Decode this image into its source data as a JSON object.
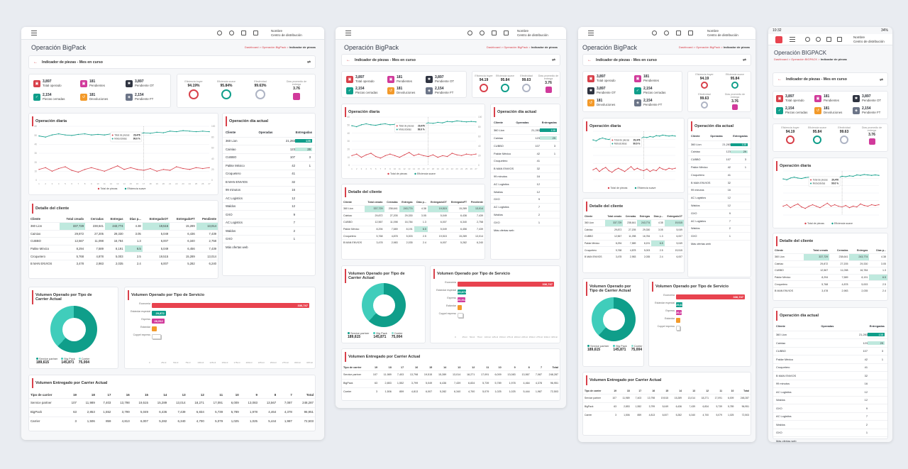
{
  "app": {
    "user_name": "Nombre",
    "user_sub": "Centro de distribución",
    "title": "Operación BigPack",
    "title_mobile": "Operación BIGPACK",
    "crumb_dashboard": "Dashboard",
    "crumb_mid": "Operación BigPack",
    "crumb_mid_mobile": "Operación BIGPACK",
    "crumb_current": "Indicador de piezas",
    "crumb_sep": " > ",
    "status_time": "10:32",
    "status_battery": "34%"
  },
  "subheader": {
    "label": "Indicador de piezas - Mes en curso"
  },
  "kpis": [
    {
      "value": "3,897",
      "label": "Total operado",
      "color": "#d8404a"
    },
    {
      "value": "181",
      "label": "Pendientes",
      "color": "#d13a9b"
    },
    {
      "value": "3,897",
      "label": "Pendiente OT",
      "color": "#2f3441"
    },
    {
      "value": "2,154",
      "label": "Piezas cerradas",
      "color": "#0f9e8a"
    },
    {
      "value": "181",
      "label": "Devoluciones",
      "color": "#f39a2a"
    },
    {
      "value": "2,154",
      "label": "Pendiente FT",
      "color": "#6c7588"
    }
  ],
  "gauges": [
    {
      "label": "Eficiencia buyer",
      "value": "94.19%",
      "value_short": "94.19",
      "color": "#d8404a"
    },
    {
      "label": "Eficiencia suave",
      "value": "95.84%",
      "value_short": "95.84",
      "color": "#0f9e8a"
    },
    {
      "label": "Efectividad",
      "value": "99.63%",
      "value_short": "99.63",
      "color": "#aeb4c4"
    },
    {
      "label": "Días promedio de entrega",
      "value": "3.76",
      "value_short": "3.76",
      "color": "#d13a9b"
    }
  ],
  "operacion_diaria": {
    "title": "Operación diaria",
    "tooltip": [
      {
        "label": "Total de piezas",
        "value": "29,476",
        "color": "#d8404a"
      },
      {
        "label": "Motocicletas",
        "value": "99.6 %",
        "color": "#0f9e8a"
      }
    ],
    "legend": [
      {
        "label": "Total de piezas",
        "color": "#d8404a"
      },
      {
        "label": "Eficiencia suave",
        "color": "#0f9e8a"
      }
    ],
    "y_ticks": [
      "60",
      "50",
      "40",
      "30",
      "20",
      "10",
      "0"
    ],
    "y2_ticks": [
      "100",
      "80",
      "60",
      "40",
      "20",
      "0"
    ],
    "x_ticks": [
      "1",
      "2",
      "3",
      "4",
      "5",
      "6",
      "7",
      "8",
      "9",
      "10",
      "11",
      "12",
      "13",
      "14",
      "15",
      "16",
      "17",
      "18",
      "19",
      "20",
      "21",
      "22",
      "23",
      "24",
      "25",
      "26",
      "27"
    ]
  },
  "chart_data": {
    "type": "line",
    "title": "Operación diaria",
    "x": [
      1,
      2,
      3,
      4,
      5,
      6,
      7,
      8,
      9,
      10,
      11,
      12,
      13,
      14,
      15,
      16,
      17,
      18,
      19,
      20,
      21,
      22,
      23,
      24,
      25,
      26,
      27
    ],
    "series": [
      {
        "name": "Total de piezas",
        "axis": "left",
        "color": "#d8404a",
        "values": [
          12,
          14,
          10,
          13,
          15,
          11,
          9,
          12,
          14,
          12,
          10,
          13,
          16,
          12,
          14,
          12,
          11,
          13,
          10,
          12,
          11,
          15,
          13,
          12,
          14,
          13,
          14
        ]
      },
      {
        "name": "Eficiencia suave",
        "axis": "right",
        "color": "#0f9e8a",
        "values": [
          82,
          80,
          84,
          86,
          84,
          83,
          85,
          86,
          84,
          85,
          84,
          86,
          83,
          85,
          86,
          85,
          88,
          87,
          89,
          88,
          91,
          90,
          92,
          91,
          90,
          91,
          90
        ]
      }
    ],
    "ylim": [
      0,
      60
    ],
    "y2lim": [
      0,
      100
    ]
  },
  "operacion_dia": {
    "title": "Operación día actual",
    "headers": [
      "Cliente",
      "Operadas",
      "Entregadas"
    ],
    "rows": [
      [
        "360 Lion",
        "21,283",
        "135"
      ],
      [
        "Cainiao",
        "123",
        "29"
      ],
      [
        "CUBBO",
        "107",
        "3"
      ],
      [
        "Pakke México",
        "42",
        "1"
      ],
      [
        "Croquetero",
        "41",
        ""
      ],
      [
        "B MAN ENVIOS",
        "32",
        ""
      ],
      [
        "99 minutos",
        "16",
        ""
      ],
      [
        "AC Logistics",
        "12",
        ""
      ],
      [
        "Waldos",
        "12",
        ""
      ],
      [
        "GXO",
        "9",
        ""
      ],
      [
        "AC Logistics",
        "7",
        ""
      ],
      [
        "Waldos",
        "2",
        ""
      ],
      [
        "GXO",
        "1",
        ""
      ]
    ],
    "more": "Más ofertas web"
  },
  "detalle": {
    "title": "Detalle del cliente",
    "headers": [
      "Cliente",
      "Total creado",
      "Cerradas",
      "Entregas",
      "Días p...",
      "EntregadoOT",
      "EntregadoFT",
      "Pendiente"
    ],
    "rows": [
      [
        "360 Lion",
        "337,729",
        "238,641",
        "243,774",
        "4.38",
        "19,515",
        "15,289",
        "13,014"
      ],
      [
        "Cainiao",
        "29,872",
        "27,205",
        "29,330",
        "3.05",
        "5,049",
        "6,436",
        "7,439"
      ],
      [
        "CUBBO",
        "12,567",
        "11,098",
        "16,784",
        "1.3",
        "6,007",
        "6,340",
        "2,758"
      ],
      [
        "Pakke México",
        "8,294",
        "7,589",
        "8,191",
        "6.5",
        "5,049",
        "6,456",
        "7,439"
      ],
      [
        "Croquetero",
        "5,768",
        "4,878",
        "5,003",
        "2.5",
        "19,515",
        "15,289",
        "13,014"
      ],
      [
        "B MAN ENVIOS",
        "3,478",
        "2,983",
        "2,035",
        "2.4",
        "6,007",
        "5,282",
        "6,240"
      ]
    ]
  },
  "carrier": {
    "title": "Volumen Operado por Tipo de Carrier Actual",
    "items": [
      {
        "label": "Service partner",
        "value": "189,615",
        "color": "#0f9e8a"
      },
      {
        "label": "Big Pack",
        "value": "145,871",
        "color": "#40cdbb"
      },
      {
        "label": "Carrier",
        "value": "75,004",
        "color": "#8fded2"
      }
    ]
  },
  "servicio": {
    "title": "Volumen Operado por Tipo de Servicio",
    "bars": [
      {
        "label": "Economía",
        "value": "336,747",
        "color": "#e8434f",
        "pct": 1.0
      },
      {
        "label": "Estándar especial",
        "value": "29,872",
        "color": "#0f9e8a",
        "pct": 0.089
      },
      {
        "label": "Express",
        "value": "26,912",
        "color": "#d13a9b",
        "pct": 0.08
      },
      {
        "label": "Estándar",
        "value": "",
        "color": "#f39a2a",
        "pct": 0.03
      },
      {
        "label": "Coppel express",
        "value": "",
        "color": "#ffffff",
        "pct": 0.06
      }
    ],
    "x_ticks": [
      "0",
      "25mil",
      "50mil",
      "75mil",
      "100mil",
      "125mil",
      "150mil",
      "175mil",
      "200mil",
      "225mil",
      "250mil",
      "275mil",
      "300mil",
      "325mil"
    ]
  },
  "entregado": {
    "title": "Volumen Entregado por Carrier Actual",
    "headers": [
      "Tipo de carrier",
      "19",
      "18",
      "17",
      "16",
      "15",
      "14",
      "13",
      "12",
      "11",
      "10",
      "9",
      "8",
      "7",
      "Total"
    ],
    "rows": [
      [
        "Service partner",
        "107",
        "11,989",
        "7,403",
        "13,798",
        "19,515",
        "15,289",
        "13,014",
        "18,271",
        "17,091",
        "6,009",
        "13,083",
        "13,567",
        "7,087",
        "248,287"
      ],
      [
        "BigPack",
        "63",
        "2,853",
        "1,552",
        "3,799",
        "5,049",
        "6,436",
        "7,439",
        "6,834",
        "5,739",
        "5,789",
        "1,978",
        "4,464",
        "4,378",
        "96,951"
      ],
      [
        "Carrier",
        "3",
        "1,506",
        "859",
        "4,813",
        "6,007",
        "5,282",
        "6,340",
        "4,700",
        "5,079",
        "1,025",
        "1,025",
        "5,444",
        "1,987",
        "72,503"
      ]
    ]
  }
}
